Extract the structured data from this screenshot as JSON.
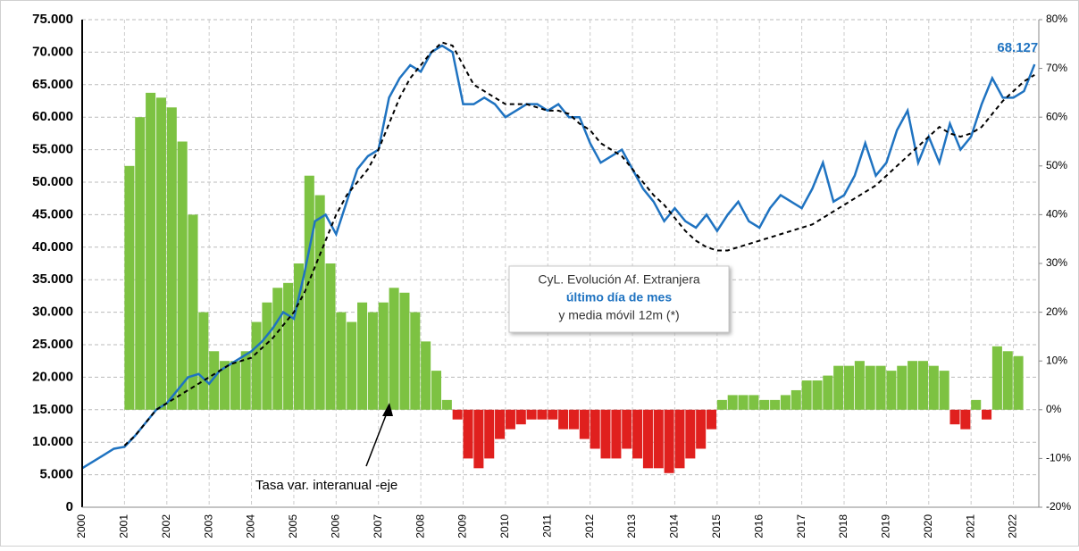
{
  "chart_data": {
    "type": "combo",
    "xlim": [
      2000,
      2022.6
    ],
    "xticks": [
      2000,
      2001,
      2002,
      2003,
      2004,
      2005,
      2006,
      2007,
      2008,
      2009,
      2010,
      2011,
      2012,
      2013,
      2014,
      2015,
      2016,
      2017,
      2018,
      2019,
      2020,
      2021,
      2022
    ],
    "ylim": [
      0,
      75000
    ],
    "yticks": [
      {
        "value": 0,
        "label": "0"
      },
      {
        "value": 5000,
        "label": "5.000"
      },
      {
        "value": 10000,
        "label": "10.000"
      },
      {
        "value": 15000,
        "label": "15.000"
      },
      {
        "value": 20000,
        "label": "20.000"
      },
      {
        "value": 25000,
        "label": "25.000"
      },
      {
        "value": 30000,
        "label": "30.000"
      },
      {
        "value": 35000,
        "label": "35.000"
      },
      {
        "value": 40000,
        "label": "40.000"
      },
      {
        "value": 45000,
        "label": "45.000"
      },
      {
        "value": 50000,
        "label": "50.000"
      },
      {
        "value": 55000,
        "label": "55.000"
      },
      {
        "value": 60000,
        "label": "60.000"
      },
      {
        "value": 65000,
        "label": "65.000"
      },
      {
        "value": 70000,
        "label": "70.000"
      },
      {
        "value": 75000,
        "label": "75.000"
      }
    ],
    "y2lim": [
      -20,
      80
    ],
    "y2ticks": [
      {
        "value": -20,
        "label": "-20%"
      },
      {
        "value": -10,
        "label": "-10%"
      },
      {
        "value": 0,
        "label": "0%"
      },
      {
        "value": 10,
        "label": "10%"
      },
      {
        "value": 20,
        "label": "20%"
      },
      {
        "value": 30,
        "label": "30%"
      },
      {
        "value": 40,
        "label": "40%"
      },
      {
        "value": 50,
        "label": "50%"
      },
      {
        "value": 60,
        "label": "60%"
      },
      {
        "value": 70,
        "label": "70%"
      },
      {
        "value": 80,
        "label": "80%"
      }
    ],
    "grid": true,
    "series": [
      {
        "kind": "line",
        "color": "#1f73c1",
        "x": [
          2000,
          2000.25,
          2000.5,
          2000.75,
          2001,
          2001.25,
          2001.5,
          2001.75,
          2002,
          2002.25,
          2002.5,
          2002.75,
          2003,
          2003.25,
          2003.5,
          2003.75,
          2004,
          2004.25,
          2004.5,
          2004.75,
          2005,
          2005.25,
          2005.5,
          2005.75,
          2006,
          2006.25,
          2006.5,
          2006.75,
          2007,
          2007.25,
          2007.5,
          2007.75,
          2008,
          2008.25,
          2008.5,
          2008.75,
          2009,
          2009.25,
          2009.5,
          2009.75,
          2010,
          2010.25,
          2010.5,
          2010.75,
          2011,
          2011.25,
          2011.5,
          2011.75,
          2012,
          2012.25,
          2012.5,
          2012.75,
          2013,
          2013.25,
          2013.5,
          2013.75,
          2014,
          2014.25,
          2014.5,
          2014.75,
          2015,
          2015.25,
          2015.5,
          2015.75,
          2016,
          2016.25,
          2016.5,
          2016.75,
          2017,
          2017.25,
          2017.5,
          2017.75,
          2018,
          2018.25,
          2018.5,
          2018.75,
          2019,
          2019.25,
          2019.5,
          2019.75,
          2020,
          2020.25,
          2020.5,
          2020.75,
          2021,
          2021.25,
          2021.5,
          2021.75,
          2022,
          2022.25,
          2022.5
        ],
        "values": [
          6000,
          7000,
          8000,
          9000,
          9300,
          11000,
          13000,
          15000,
          16000,
          18000,
          20000,
          20500,
          19000,
          21000,
          22000,
          23000,
          24000,
          25500,
          27500,
          30000,
          29000,
          36000,
          44000,
          45000,
          42000,
          47000,
          52000,
          54000,
          55000,
          63000,
          66000,
          68000,
          67000,
          70000,
          71000,
          70000,
          62000,
          62000,
          63000,
          62000,
          60000,
          61000,
          62000,
          62000,
          61000,
          62000,
          60000,
          60000,
          56000,
          53000,
          54000,
          55000,
          52000,
          49000,
          47000,
          44000,
          46000,
          44000,
          43000,
          45000,
          42500,
          45000,
          47000,
          44000,
          43000,
          46000,
          48000,
          47000,
          46000,
          49000,
          53000,
          47000,
          48000,
          51000,
          56000,
          51000,
          53000,
          58000,
          61000,
          53000,
          57000,
          53000,
          59000,
          55000,
          57000,
          62000,
          66000,
          63000,
          63000,
          64000,
          68127
        ],
        "value_labels": [
          null,
          null,
          null,
          null,
          null,
          null,
          null,
          null,
          null,
          null,
          null,
          null,
          null,
          null,
          null,
          null,
          null,
          null,
          null,
          null,
          null,
          null,
          null,
          null,
          null,
          null,
          null,
          null,
          null,
          null,
          null,
          null,
          null,
          null,
          null,
          null,
          null,
          null,
          null,
          null,
          null,
          null,
          null,
          null,
          null,
          null,
          null,
          null,
          null,
          null,
          null,
          null,
          null,
          null,
          null,
          null,
          null,
          null,
          null,
          null,
          null,
          null,
          null,
          null,
          null,
          null,
          null,
          null,
          null,
          null,
          null,
          null,
          null,
          null,
          null,
          null,
          null,
          null,
          null,
          null,
          null,
          null,
          null,
          null,
          null,
          null,
          null,
          null,
          null,
          null,
          "68.127"
        ]
      },
      {
        "kind": "dashed",
        "color": "#000000",
        "x": [
          2001,
          2001.25,
          2001.5,
          2001.75,
          2002,
          2002.25,
          2002.5,
          2002.75,
          2003,
          2003.25,
          2003.5,
          2003.75,
          2004,
          2004.25,
          2004.5,
          2004.75,
          2005,
          2005.25,
          2005.5,
          2005.75,
          2006,
          2006.25,
          2006.5,
          2006.75,
          2007,
          2007.25,
          2007.5,
          2007.75,
          2008,
          2008.25,
          2008.5,
          2008.75,
          2009,
          2009.25,
          2009.5,
          2009.75,
          2010,
          2010.25,
          2010.5,
          2010.75,
          2011,
          2011.25,
          2011.5,
          2011.75,
          2012,
          2012.25,
          2012.5,
          2012.75,
          2013,
          2013.25,
          2013.5,
          2013.75,
          2014,
          2014.25,
          2014.5,
          2014.75,
          2015,
          2015.25,
          2015.5,
          2015.75,
          2016,
          2016.25,
          2016.5,
          2016.75,
          2017,
          2017.25,
          2017.5,
          2017.75,
          2018,
          2018.25,
          2018.5,
          2018.75,
          2019,
          2019.25,
          2019.5,
          2019.75,
          2020,
          2020.25,
          2020.5,
          2020.75,
          2021,
          2021.25,
          2021.5,
          2021.75,
          2022,
          2022.25,
          2022.5
        ],
        "values": [
          9500,
          11000,
          13000,
          15000,
          16000,
          17000,
          18000,
          19000,
          20000,
          21000,
          22000,
          22500,
          23000,
          24500,
          26000,
          28000,
          30000,
          33000,
          37000,
          41000,
          45000,
          48000,
          50000,
          52000,
          55000,
          59000,
          63000,
          66000,
          68000,
          70000,
          71500,
          71000,
          68000,
          65000,
          64000,
          63000,
          62000,
          62000,
          62000,
          61500,
          61000,
          61000,
          60500,
          59000,
          58000,
          56000,
          55000,
          54000,
          52000,
          50000,
          48000,
          46500,
          44500,
          42500,
          41000,
          40000,
          39500,
          39500,
          40000,
          40500,
          41000,
          41500,
          42000,
          42500,
          43000,
          43500,
          44500,
          45500,
          46500,
          47500,
          48500,
          49500,
          51000,
          52500,
          54000,
          55500,
          57000,
          58500,
          57500,
          57000,
          57500,
          58500,
          60500,
          62500,
          64000,
          65500,
          66500
        ]
      },
      {
        "kind": "bar",
        "axis": "y2",
        "color": "#7dc242",
        "negative_color": "#e0201e",
        "x": [
          2001,
          2001.25,
          2001.5,
          2001.75,
          2002,
          2002.25,
          2002.5,
          2002.75,
          2003,
          2003.25,
          2003.5,
          2003.75,
          2004,
          2004.25,
          2004.5,
          2004.75,
          2005,
          2005.25,
          2005.5,
          2005.75,
          2006,
          2006.25,
          2006.5,
          2006.75,
          2007,
          2007.25,
          2007.5,
          2007.75,
          2008,
          2008.25,
          2008.5,
          2008.75,
          2009,
          2009.25,
          2009.5,
          2009.75,
          2010,
          2010.25,
          2010.5,
          2010.75,
          2011,
          2011.25,
          2011.5,
          2011.75,
          2012,
          2012.25,
          2012.5,
          2012.75,
          2013,
          2013.25,
          2013.5,
          2013.75,
          2014,
          2014.25,
          2014.5,
          2014.75,
          2015,
          2015.25,
          2015.5,
          2015.75,
          2016,
          2016.25,
          2016.5,
          2016.75,
          2017,
          2017.25,
          2017.5,
          2017.75,
          2018,
          2018.25,
          2018.5,
          2018.75,
          2019,
          2019.25,
          2019.5,
          2019.75,
          2020,
          2020.25,
          2020.5,
          2020.75,
          2021,
          2021.25,
          2021.5,
          2021.75,
          2022
        ],
        "values": [
          50,
          60,
          65,
          64,
          62,
          55,
          40,
          20,
          12,
          10,
          10,
          12,
          18,
          22,
          25,
          26,
          30,
          48,
          44,
          30,
          20,
          18,
          22,
          20,
          22,
          25,
          24,
          20,
          14,
          8,
          2,
          -2,
          -10,
          -12,
          -10,
          -6,
          -4,
          -3,
          -2,
          -2,
          -2,
          -4,
          -4,
          -6,
          -8,
          -10,
          -10,
          -8,
          -10,
          -12,
          -12,
          -13,
          -12,
          -10,
          -8,
          -4,
          2,
          3,
          3,
          3,
          2,
          2,
          3,
          4,
          6,
          6,
          7,
          9,
          9,
          10,
          9,
          9,
          8,
          9,
          10,
          10,
          9,
          8,
          -3,
          -4,
          2,
          -2,
          13,
          12,
          11
        ]
      }
    ],
    "annotations": {
      "box": [
        "CyL. Evolución Af. Extranjera",
        "último día de mes",
        "y media móvil 12m (*)"
      ],
      "arrow_label": "Tasa var. interanual -eje"
    }
  }
}
